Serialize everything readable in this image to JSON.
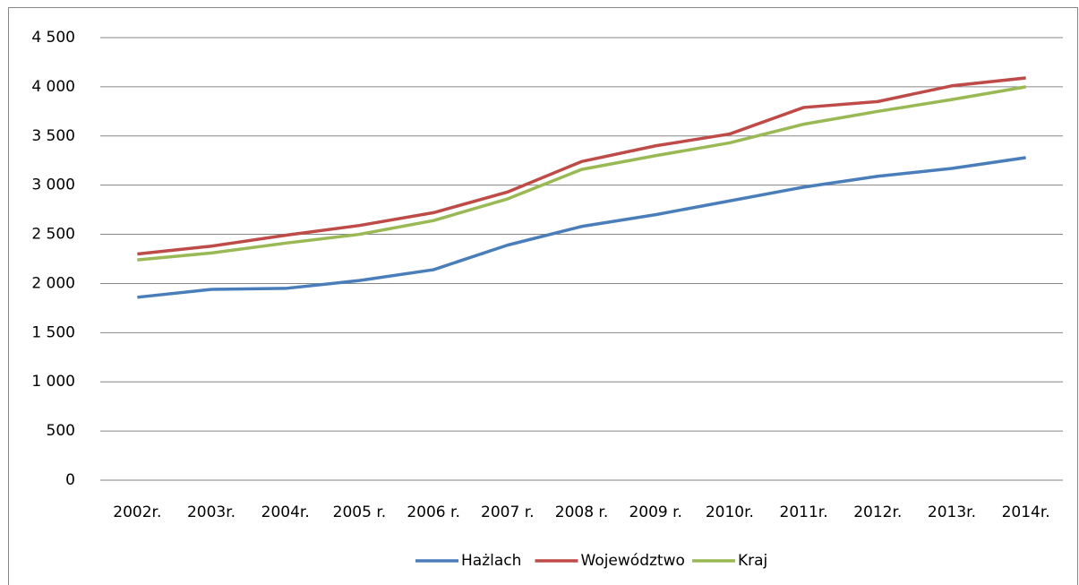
{
  "chart_data": {
    "type": "line",
    "categories": [
      "2002r.",
      "2003r.",
      "2004r.",
      "2005 r.",
      "2006 r.",
      "2007 r.",
      "2008 r.",
      "2009 r.",
      "2010r.",
      "2011r.",
      "2012r.",
      "2013r.",
      "2014r."
    ],
    "series": [
      {
        "name": "Hażlach",
        "color": "#4a7ebb",
        "values": [
          1860,
          1940,
          1950,
          2030,
          2140,
          2390,
          2580,
          2700,
          2840,
          2980,
          3090,
          3170,
          3280
        ]
      },
      {
        "name": "Województwo",
        "color": "#be4b48",
        "values": [
          2300,
          2380,
          2490,
          2590,
          2720,
          2930,
          3240,
          3400,
          3520,
          3790,
          3850,
          4010,
          4090
        ]
      },
      {
        "name": "Kraj",
        "color": "#98b954",
        "values": [
          2240,
          2310,
          2410,
          2500,
          2640,
          2860,
          3160,
          3300,
          3430,
          3620,
          3750,
          3870,
          4000
        ]
      }
    ],
    "ylim": [
      0,
      4500
    ],
    "yticks": [
      0,
      500,
      {
        "value": 1000,
        "label": "1 000"
      },
      {
        "value": 1500,
        "label": "1 500"
      },
      {
        "value": 2000,
        "label": "2 000"
      },
      {
        "value": 2500,
        "label": "2 500"
      },
      {
        "value": 3000,
        "label": "3 000"
      },
      {
        "value": 3500,
        "label": "3 500"
      },
      {
        "value": 4000,
        "label": "4 000"
      },
      {
        "value": 4500,
        "label": "4 500"
      }
    ],
    "grid": true,
    "legend": "bottom"
  }
}
